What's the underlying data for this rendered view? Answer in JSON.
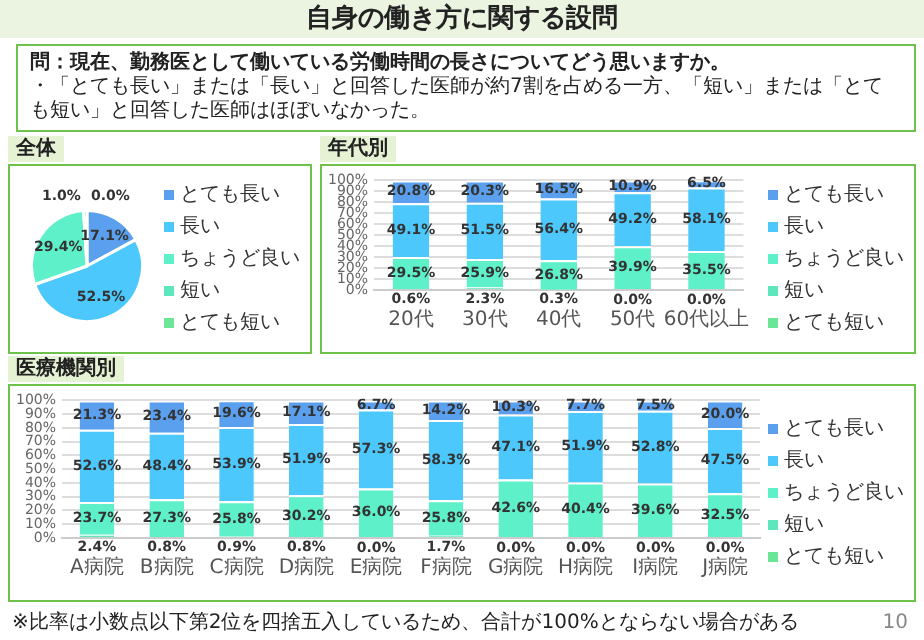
{
  "chart_data": [
    {
      "type": "other",
      "title": "自身の働き方に関する設問",
      "subtitle": "問：現在、勤務医として働いている労働時間の長さについてどう思いますか。",
      "annotations": [
        "・「とても長い」または「長い」と回答した医師が約7割を占める一方、「短い」または「とても短い」と回答した医師はほぼいなかった。",
        "※比率は小数点以下第2位を四捨五入しているため、合計が100%とならない場合がある",
        "10"
      ]
    },
    {
      "type": "pie",
      "title": "全体",
      "categories": [
        "とても長い",
        "長い",
        "ちょうど良い",
        "短い",
        "とても短い"
      ],
      "values": [
        17.1,
        52.5,
        29.4,
        1.0,
        0.0
      ],
      "colors": [
        "#5aa0ee",
        "#4cc8fc",
        "#5ef0c8",
        "#5ee6bc",
        "#6be696"
      ],
      "value_labels": [
        "17.1%",
        "52.5%",
        "29.4%",
        "1.0%",
        "0.0%"
      ],
      "legend": "right"
    },
    {
      "type": "bar",
      "title": "年代別",
      "stacked": true,
      "categories": [
        "20代",
        "30代",
        "40代",
        "50代",
        "60代以上"
      ],
      "series": [
        {
          "name": "とても短い",
          "color": "#6be696",
          "values": [
            null,
            null,
            null,
            null,
            null
          ]
        },
        {
          "name": "短い",
          "color": "#5ee6bc",
          "values": [
            0.6,
            2.3,
            0.3,
            0.0,
            0.0
          ],
          "value_labels": [
            "0.6%",
            "2.3%",
            "0.3%",
            "0.0%",
            "0.0%"
          ]
        },
        {
          "name": "ちょうど良い",
          "color": "#5ef0c8",
          "values": [
            29.5,
            25.9,
            26.8,
            39.9,
            35.5
          ],
          "value_labels": [
            "29.5%",
            "25.9%",
            "26.8%",
            "39.9%",
            "35.5%"
          ]
        },
        {
          "name": "長い",
          "color": "#4cc8fc",
          "values": [
            49.1,
            51.5,
            56.4,
            49.2,
            58.1
          ],
          "value_labels": [
            "49.1%",
            "51.5%",
            "56.4%",
            "49.2%",
            "58.1%"
          ]
        },
        {
          "name": "とても長い",
          "color": "#5aa0ee",
          "values": [
            20.8,
            20.3,
            16.5,
            10.9,
            6.5
          ],
          "value_labels": [
            "20.8%",
            "20.3%",
            "16.5%",
            "10.9%",
            "6.5%"
          ]
        }
      ],
      "ylim": [
        0,
        100
      ],
      "yticks": [
        {
          "value": 0,
          "label": "0%"
        },
        {
          "value": 10,
          "label": "10%"
        },
        {
          "value": 20,
          "label": "20%"
        },
        {
          "value": 30,
          "label": "30%"
        },
        {
          "value": 40,
          "label": "40%"
        },
        {
          "value": 50,
          "label": "50%"
        },
        {
          "value": 60,
          "label": "60%"
        },
        {
          "value": 70,
          "label": "70%"
        },
        {
          "value": 80,
          "label": "80%"
        },
        {
          "value": 90,
          "label": "90%"
        },
        {
          "value": 100,
          "label": "100%"
        }
      ],
      "grid": "y",
      "legend": "right"
    },
    {
      "type": "bar",
      "title": "医療機関別",
      "stacked": true,
      "categories": [
        "A病院",
        "B病院",
        "C病院",
        "D病院",
        "E病院",
        "F病院",
        "G病院",
        "H病院",
        "I病院",
        "J病院"
      ],
      "series": [
        {
          "name": "とても短い",
          "color": "#6be696",
          "values": [
            null,
            null,
            null,
            null,
            null,
            null,
            null,
            null,
            null,
            null
          ]
        },
        {
          "name": "短い",
          "color": "#5ee6bc",
          "values": [
            2.4,
            0.8,
            0.9,
            0.8,
            0.0,
            1.7,
            0.0,
            0.0,
            0.0,
            0.0
          ],
          "value_labels": [
            "2.4%",
            "0.8%",
            "0.9%",
            "0.8%",
            "0.0%",
            "1.7%",
            "0.0%",
            "0.0%",
            "0.0%",
            "0.0%"
          ]
        },
        {
          "name": "ちょうど良い",
          "color": "#5ef0c8",
          "values": [
            23.7,
            27.3,
            25.8,
            30.2,
            36.0,
            25.8,
            42.6,
            40.4,
            39.6,
            32.5
          ],
          "value_labels": [
            "23.7%",
            "27.3%",
            "25.8%",
            "30.2%",
            "36.0%",
            "25.8%",
            "42.6%",
            "40.4%",
            "39.6%",
            "32.5%"
          ]
        },
        {
          "name": "長い",
          "color": "#4cc8fc",
          "values": [
            52.6,
            48.4,
            53.9,
            51.9,
            57.3,
            58.3,
            47.1,
            51.9,
            52.8,
            47.5
          ],
          "value_labels": [
            "52.6%",
            "48.4%",
            "53.9%",
            "51.9%",
            "57.3%",
            "58.3%",
            "47.1%",
            "51.9%",
            "52.8%",
            "47.5%"
          ]
        },
        {
          "name": "とても長い",
          "color": "#5aa0ee",
          "values": [
            21.3,
            23.4,
            19.6,
            17.1,
            6.7,
            14.2,
            10.3,
            7.7,
            7.5,
            20.0
          ],
          "value_labels": [
            "21.3%",
            "23.4%",
            "19.6%",
            "17.1%",
            "6.7%",
            "14.2%",
            "10.3%",
            "7.7%",
            "7.5%",
            "20.0%"
          ]
        }
      ],
      "ylim": [
        0,
        100
      ],
      "yticks": [
        {
          "value": 0,
          "label": "0%"
        },
        {
          "value": 10,
          "label": "10%"
        },
        {
          "value": 20,
          "label": "20%"
        },
        {
          "value": 30,
          "label": "30%"
        },
        {
          "value": 40,
          "label": "40%"
        },
        {
          "value": 50,
          "label": "50%"
        },
        {
          "value": 60,
          "label": "60%"
        },
        {
          "value": 70,
          "label": "70%"
        },
        {
          "value": 80,
          "label": "80%"
        },
        {
          "value": 90,
          "label": "90%"
        },
        {
          "value": 100,
          "label": "100%"
        }
      ],
      "grid": "y",
      "legend": "right"
    }
  ]
}
